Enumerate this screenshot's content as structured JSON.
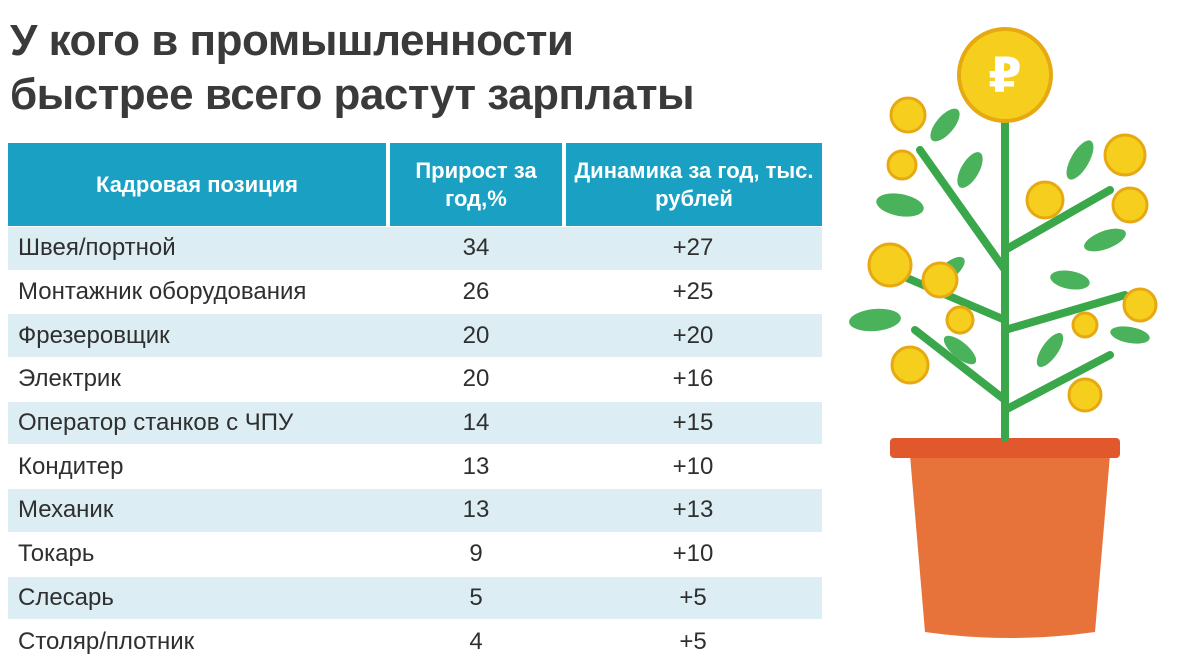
{
  "title": {
    "line1": "У кого в промышленности",
    "line2": "быстрее всего растут зарплаты"
  },
  "table": {
    "headers": {
      "position": "Кадровая позиция",
      "growth": "Прирост за год,%",
      "dynamics": "Динамика за год, тыс. рублей"
    },
    "rows": [
      {
        "position": "Швея/портной",
        "growth": "34",
        "dynamics": "+27"
      },
      {
        "position": "Монтажник оборудования",
        "growth": "26",
        "dynamics": "+25"
      },
      {
        "position": "Фрезеровщик",
        "growth": "20",
        "dynamics": "+20"
      },
      {
        "position": "Электрик",
        "growth": "20",
        "dynamics": "+16"
      },
      {
        "position": "Оператор станков с ЧПУ",
        "growth": "14",
        "dynamics": "+15"
      },
      {
        "position": "Кондитер",
        "growth": "13",
        "dynamics": "+10"
      },
      {
        "position": "Механик",
        "growth": "13",
        "dynamics": "+13"
      },
      {
        "position": "Токарь",
        "growth": "9",
        "dynamics": "+10"
      },
      {
        "position": "Слесарь",
        "growth": "5",
        "dynamics": "+5"
      },
      {
        "position": "Столяр/плотник",
        "growth": "4",
        "dynamics": "+5"
      }
    ]
  },
  "illustration": {
    "icon": "money-tree-icon",
    "coin_symbol": "₽"
  },
  "colors": {
    "header_bg": "#1aa0c2",
    "row_shade": "#dceef3",
    "title_text": "#3a3a3a",
    "pot": "#e8733a",
    "stem": "#3aa84a",
    "leaf": "#49b25a",
    "coin": "#f6cf1e"
  }
}
